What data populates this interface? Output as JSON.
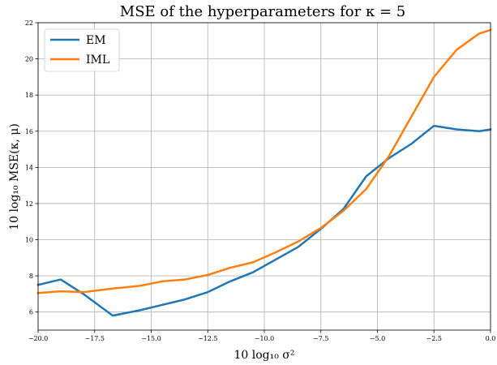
{
  "chart_data": {
    "type": "line",
    "title": "MSE of the hyperparameters for κ = 5",
    "xlabel": "10 log₁₀ σ²",
    "ylabel": "10 log₁₀ MSE(κ, μ)",
    "x": [
      -20.0,
      -19.0,
      -18.0,
      -16.7,
      -15.5,
      -14.5,
      -13.5,
      -12.5,
      -11.5,
      -10.5,
      -9.5,
      -8.5,
      -7.5,
      -6.5,
      -5.5,
      -4.5,
      -3.5,
      -2.5,
      -1.5,
      -0.5,
      0.0
    ],
    "xlim": [
      -20.0,
      0.0
    ],
    "ylim": [
      5.0,
      22.0
    ],
    "xticks": [
      -20.0,
      -17.5,
      -15.0,
      -12.5,
      -10.0,
      -7.5,
      -5.0,
      -2.5,
      0.0
    ],
    "xtick_labels": [
      "−20.0",
      "−17.5",
      "−15.0",
      "−12.5",
      "−10.0",
      "−7.5",
      "−5.0",
      "−2.5",
      "0.0"
    ],
    "yticks": [
      6,
      8,
      10,
      12,
      14,
      16,
      18,
      20,
      22
    ],
    "ytick_labels": [
      "6",
      "8",
      "10",
      "12",
      "14",
      "16",
      "18",
      "20",
      "22"
    ],
    "grid": true,
    "legend_position": "top-left",
    "series": [
      {
        "name": "EM",
        "color": "#1f77b4",
        "values": [
          7.5,
          7.8,
          7.0,
          5.8,
          6.1,
          6.4,
          6.7,
          7.1,
          7.7,
          8.2,
          8.9,
          9.6,
          10.6,
          11.7,
          13.5,
          14.5,
          15.3,
          16.3,
          16.1,
          16.0,
          16.1
        ]
      },
      {
        "name": "IML",
        "color": "#ff7f0e",
        "values": [
          7.05,
          7.15,
          7.1,
          7.3,
          7.45,
          7.7,
          7.8,
          8.05,
          8.45,
          8.75,
          9.3,
          9.9,
          10.65,
          11.6,
          12.8,
          14.6,
          16.8,
          19.0,
          20.5,
          21.4,
          21.6
        ]
      }
    ]
  }
}
